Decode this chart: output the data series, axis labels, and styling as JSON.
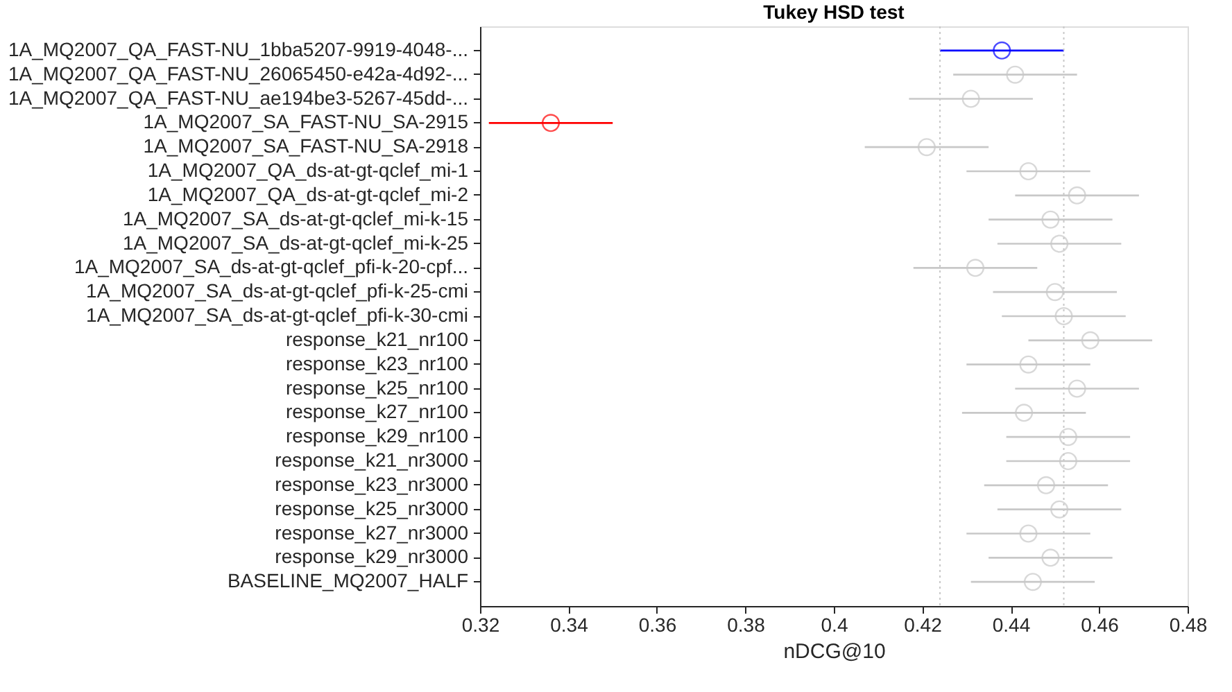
{
  "chart_data": {
    "type": "scatter",
    "orientation": "horizontal",
    "title": "Tukey HSD test",
    "xlabel": "nDCG@10",
    "categories": [
      "1A_MQ2007_QA_FAST-NU_1bba5207-9919-4048-...",
      "1A_MQ2007_QA_FAST-NU_26065450-e42a-4d92-...",
      "1A_MQ2007_QA_FAST-NU_ae194be3-5267-45dd-...",
      "1A_MQ2007_SA_FAST-NU_SA-2915",
      "1A_MQ2007_SA_FAST-NU_SA-2918",
      "1A_MQ2007_QA_ds-at-gt-qclef_mi-1",
      "1A_MQ2007_QA_ds-at-gt-qclef_mi-2",
      "1A_MQ2007_SA_ds-at-gt-qclef_mi-k-15",
      "1A_MQ2007_SA_ds-at-gt-qclef_mi-k-25",
      "1A_MQ2007_SA_ds-at-gt-qclef_pfi-k-20-cpf...",
      "1A_MQ2007_SA_ds-at-gt-qclef_pfi-k-25-cmi",
      "1A_MQ2007_SA_ds-at-gt-qclef_pfi-k-30-cmi",
      "response_k21_nr100",
      "response_k23_nr100",
      "response_k25_nr100",
      "response_k27_nr100",
      "response_k29_nr100",
      "response_k21_nr3000",
      "response_k23_nr3000",
      "response_k25_nr3000",
      "response_k27_nr3000",
      "response_k29_nr3000",
      "BASELINE_MQ2007_HALF"
    ],
    "values": [
      0.438,
      0.441,
      0.431,
      0.336,
      0.421,
      0.444,
      0.455,
      0.449,
      0.451,
      0.432,
      0.45,
      0.452,
      0.458,
      0.444,
      0.455,
      0.443,
      0.453,
      0.453,
      0.448,
      0.451,
      0.444,
      0.449,
      0.445
    ],
    "errors": [
      0.014,
      0.014,
      0.014,
      0.014,
      0.014,
      0.014,
      0.014,
      0.014,
      0.014,
      0.014,
      0.014,
      0.014,
      0.014,
      0.014,
      0.014,
      0.014,
      0.014,
      0.014,
      0.014,
      0.014,
      0.014,
      0.014,
      0.014
    ],
    "colors": [
      "#0000ff",
      "#c8c8c8",
      "#c8c8c8",
      "#ff0000",
      "#c8c8c8",
      "#c8c8c8",
      "#c8c8c8",
      "#c8c8c8",
      "#c8c8c8",
      "#c8c8c8",
      "#c8c8c8",
      "#c8c8c8",
      "#c8c8c8",
      "#c8c8c8",
      "#c8c8c8",
      "#c8c8c8",
      "#c8c8c8",
      "#c8c8c8",
      "#c8c8c8",
      "#c8c8c8",
      "#c8c8c8",
      "#c8c8c8",
      "#c8c8c8"
    ],
    "xlim": [
      0.32,
      0.48
    ],
    "xticks": [
      0.32,
      0.34,
      0.36,
      0.38,
      {
        "value": 0.4,
        "label": "0.4"
      },
      0.42,
      0.44,
      0.46,
      0.48
    ],
    "ref_lines": [
      {
        "axis": "x",
        "value": 0.424,
        "color": "#c8c8c8",
        "line_style": "dotted"
      },
      {
        "axis": "x",
        "value": 0.452,
        "color": "#c8c8c8",
        "line_style": "dotted"
      }
    ],
    "marker": "circle",
    "grid": false
  }
}
